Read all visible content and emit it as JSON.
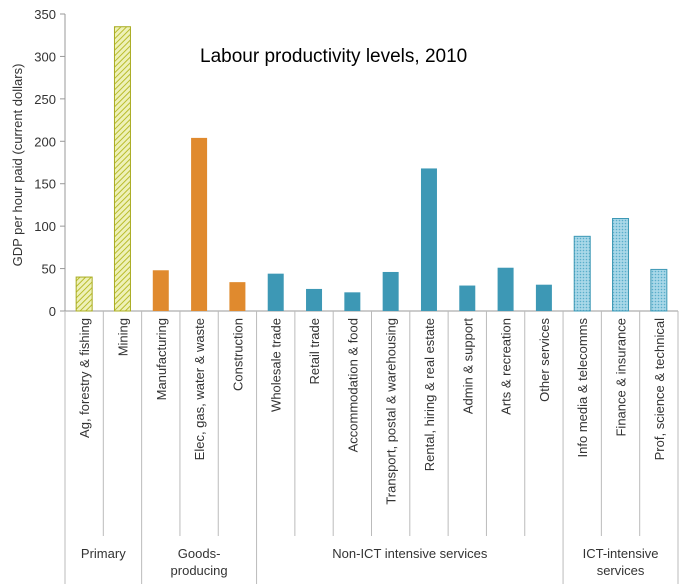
{
  "chart_data": {
    "type": "bar",
    "title": "Labour productivity levels, 2010",
    "ylabel": "GDP per hour paid (current dollars)",
    "xlabel": "",
    "ylim": [
      0,
      350
    ],
    "yticks": [
      0,
      50,
      100,
      150,
      200,
      250,
      300,
      350
    ],
    "grid": false,
    "categories": [
      "Ag, forestry & fishing",
      "Mining",
      "Manufacturing",
      "Elec, gas, water & waste",
      "Construction",
      "Wholesale trade",
      "Retail trade",
      "Accommodation & food",
      "Transport, postal & warehousing",
      "Rental, hiring & real estate",
      "Admin & support",
      "Arts & recreation",
      "Other services",
      "Info media & telecomms",
      "Finance & insurance",
      "Prof, science & technical"
    ],
    "values": [
      40,
      335,
      48,
      204,
      34,
      44,
      26,
      22,
      46,
      168,
      30,
      51,
      31,
      88,
      109,
      49
    ],
    "groups": [
      {
        "label": "Primary",
        "start": 0,
        "end": 1,
        "color": "#c9cc3f",
        "pattern": "hatch"
      },
      {
        "label": "Goods-producing",
        "start": 2,
        "end": 4,
        "color": "#e08a2e",
        "pattern": "solid"
      },
      {
        "label": "Non-ICT intensive services",
        "start": 5,
        "end": 12,
        "color": "#3d98b5",
        "pattern": "solid"
      },
      {
        "label": "ICT-intensive services",
        "start": 13,
        "end": 15,
        "color": "#6cbbd6",
        "pattern": "dots"
      }
    ]
  }
}
